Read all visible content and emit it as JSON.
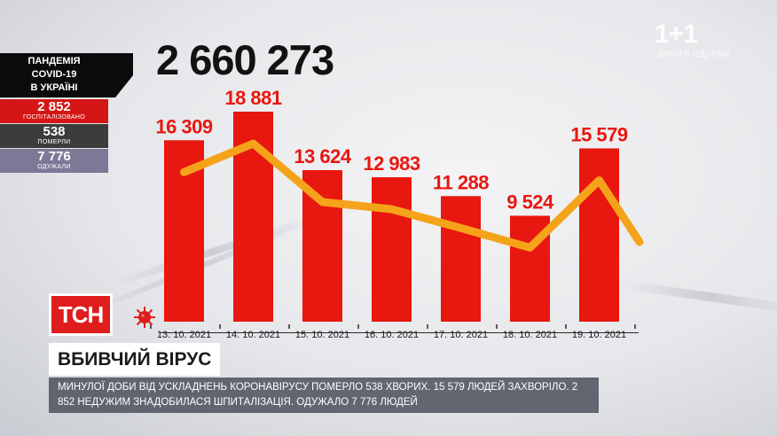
{
  "header": {
    "total": "2 660 273"
  },
  "panel": {
    "title_lines": [
      "ПАНДЕМІЯ",
      "COVID-19",
      "В УКРАЇНІ"
    ],
    "hospitalized": {
      "value": "2 852",
      "label": "ГОСПІТАЛІЗОВАНО"
    },
    "died": {
      "value": "538",
      "label": "ПОМЕРЛИ"
    },
    "recovered": {
      "value": "7 776",
      "label": "ОДУЖАЛИ"
    }
  },
  "logo": {
    "text": "1+1",
    "sub": "ДИВИ В ОДНОМУ"
  },
  "chart_data": {
    "type": "bar",
    "categories": [
      "13. 10. 2021",
      "14. 10. 2021",
      "15. 10. 2021",
      "16. 10. 2021",
      "17. 10. 2021",
      "18. 10. 2021",
      "19. 10. 2021"
    ],
    "values": [
      16309,
      18881,
      13624,
      12983,
      11288,
      9524,
      15579
    ],
    "value_labels": [
      "16 309",
      "18 881",
      "13 624",
      "12 983",
      "11 288",
      "9 524",
      "15 579"
    ],
    "trend_line": true,
    "colors": {
      "bar": "#e8170f",
      "label": "#e8170f",
      "line": "#f5a31a"
    }
  },
  "lower_third": {
    "brand": "ТСН",
    "headline": "ВБИВЧИЙ ВІРУС",
    "ticker": "Минулої доби від ускладнень коронавірусу померло 538 хворих. 15 579 людей захворіло. 2 852 недужим знадобилася шпиталізація. Одужало 7 776 людей"
  }
}
